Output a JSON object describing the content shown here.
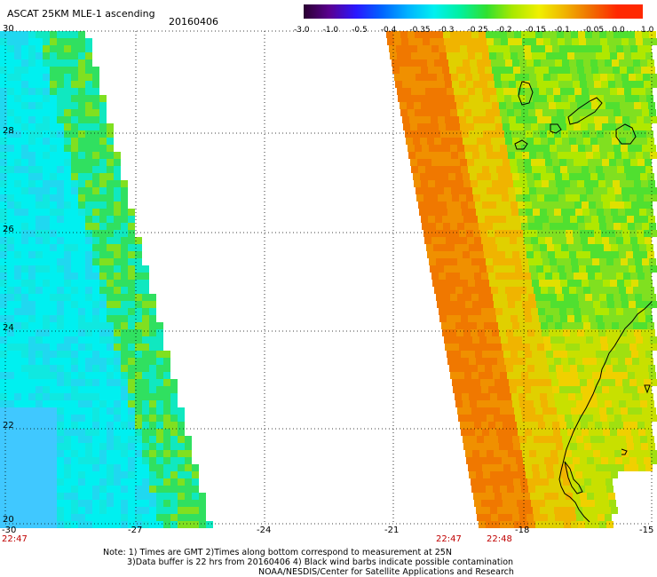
{
  "header": {
    "title": "ASCAT 25KM MLE-1 ascending",
    "date": "20160406"
  },
  "colorbar": {
    "labels": [
      "-3.0",
      "-1.0",
      "-0.5",
      "-0.4",
      "-0.35",
      "-0.3",
      "-0.25",
      "-0.2",
      "-0.15",
      "-0.1",
      "-0.05",
      "0.0",
      "1.0"
    ],
    "colors": [
      "#2a0030",
      "#5a0090",
      "#2a18ff",
      "#0064ff",
      "#00b4ff",
      "#00f0f0",
      "#00f0a0",
      "#30e030",
      "#a8e800",
      "#f0f000",
      "#f0b400",
      "#f07000",
      "#ff2800"
    ]
  },
  "axes": {
    "x_ticks": [
      "-30",
      "-27",
      "-24",
      "-21",
      "-18",
      "-15"
    ],
    "y_ticks": [
      "30",
      "28",
      "26",
      "24",
      "22",
      "20"
    ],
    "times": [
      "22:47",
      "22:47",
      "22:48"
    ]
  },
  "notes": {
    "line1": "Note: 1) Times are GMT 2)Times along bottom correspond to measurement at 25N",
    "line2": "3)Data buffer is 22 hrs from 20160406 4) Black wind barbs indicate possible contamination",
    "line3": "NOAA/NESDIS/Center for Satellite Applications and Research"
  }
}
